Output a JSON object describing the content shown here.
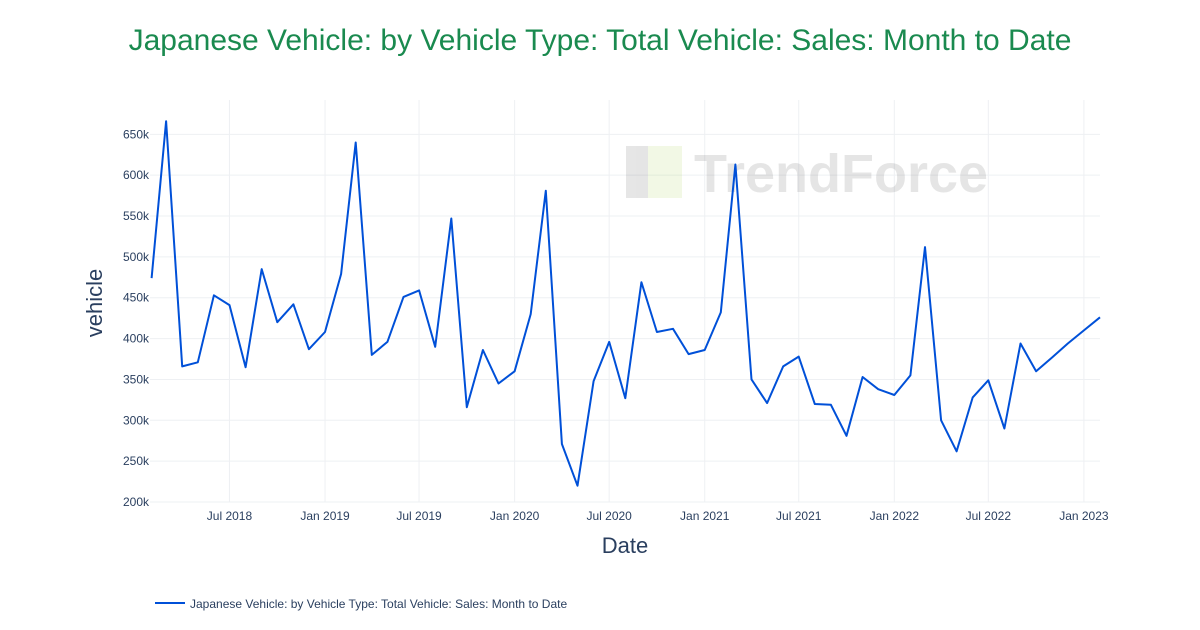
{
  "chart_data": {
    "type": "line",
    "title": "Japanese Vehicle: by Vehicle Type: Total Vehicle: Sales: Month to Date",
    "xlabel": "Date",
    "ylabel": "vehicle",
    "xlim": [
      "2018-01-29",
      "2023-02-01"
    ],
    "ylim": [
      200000,
      692000
    ],
    "grid": true,
    "legend_position": "bottom-left",
    "x_ticks": [
      {
        "date": "2018-07-01",
        "label": "Jul 2018"
      },
      {
        "date": "2019-01-01",
        "label": "Jan 2019"
      },
      {
        "date": "2019-07-01",
        "label": "Jul 2019"
      },
      {
        "date": "2020-01-01",
        "label": "Jan 2020"
      },
      {
        "date": "2020-07-01",
        "label": "Jul 2020"
      },
      {
        "date": "2021-01-01",
        "label": "Jan 2021"
      },
      {
        "date": "2021-07-01",
        "label": "Jul 2021"
      },
      {
        "date": "2022-01-01",
        "label": "Jan 2022"
      },
      {
        "date": "2022-07-01",
        "label": "Jul 2022"
      },
      {
        "date": "2023-01-01",
        "label": "Jan 2023"
      }
    ],
    "y_ticks": [
      {
        "value": 200000,
        "label": "200k"
      },
      {
        "value": 250000,
        "label": "250k"
      },
      {
        "value": 300000,
        "label": "300k"
      },
      {
        "value": 350000,
        "label": "350k"
      },
      {
        "value": 400000,
        "label": "400k"
      },
      {
        "value": 450000,
        "label": "450k"
      },
      {
        "value": 500000,
        "label": "500k"
      },
      {
        "value": 550000,
        "label": "550k"
      },
      {
        "value": 600000,
        "label": "600k"
      },
      {
        "value": 650000,
        "label": "650k"
      }
    ],
    "series": [
      {
        "name": "Japanese Vehicle: by Vehicle Type: Total Vehicle: Sales: Month to Date",
        "color": "#0050d8",
        "x": [
          "2018-02",
          "2018-03",
          "2018-04",
          "2018-05",
          "2018-06",
          "2018-07",
          "2018-08",
          "2018-09",
          "2018-10",
          "2018-11",
          "2018-12",
          "2019-01",
          "2019-02",
          "2019-03",
          "2019-04",
          "2019-05",
          "2019-06",
          "2019-07",
          "2019-08",
          "2019-09",
          "2019-10",
          "2019-11",
          "2019-12",
          "2020-01",
          "2020-02",
          "2020-03",
          "2020-04",
          "2020-05",
          "2020-06",
          "2020-07",
          "2020-08",
          "2020-09",
          "2020-10",
          "2020-11",
          "2020-12",
          "2021-01",
          "2021-02",
          "2021-03",
          "2021-04",
          "2021-05",
          "2021-06",
          "2021-07",
          "2021-08",
          "2021-09",
          "2021-10",
          "2021-11",
          "2021-12",
          "2022-01",
          "2022-02",
          "2022-03",
          "2022-04",
          "2022-05",
          "2022-06",
          "2022-07",
          "2022-08",
          "2022-09",
          "2022-10",
          "2022-11",
          "2022-12",
          "2023-01",
          "2023-02"
        ],
        "values": [
          474000,
          666000,
          366000,
          371000,
          453000,
          441000,
          365000,
          485000,
          420000,
          442000,
          387000,
          408000,
          479000,
          640000,
          380000,
          396000,
          451000,
          459000,
          390000,
          547000,
          316000,
          386000,
          345000,
          360000,
          430000,
          581000,
          271000,
          220000,
          348000,
          396000,
          327000,
          469000,
          408000,
          412000,
          381000,
          386000,
          432000,
          613000,
          350000,
          321000,
          366000,
          378000,
          320000,
          319000,
          281000,
          353000,
          338000,
          331000,
          355000,
          512000,
          300000,
          262000,
          328000,
          349000,
          290000,
          394000,
          360000,
          377000,
          394000,
          410000,
          426000
        ]
      }
    ]
  },
  "watermark": "TrendForce"
}
